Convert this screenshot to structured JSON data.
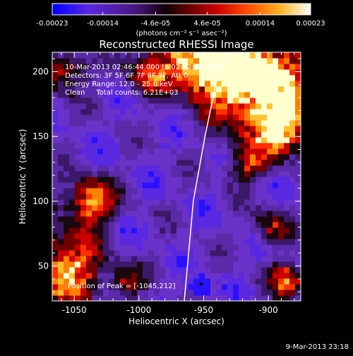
{
  "chart_data": {
    "type": "heatmap",
    "title": "Reconstructed RHESSI Image",
    "xlabel": "Heliocentric X (arcsec)",
    "ylabel": "Heliocentric Y (arcsec)",
    "xlim": [
      -1067,
      -875
    ],
    "ylim": [
      23,
      215
    ],
    "x_ticks": [
      "-1050",
      "-1000",
      "-950",
      "-900"
    ],
    "x_tick_values": [
      -1050,
      -1000,
      -950,
      -900
    ],
    "y_ticks": [
      "50",
      "100",
      "150",
      "200"
    ],
    "y_tick_values": [
      50,
      100,
      150,
      200
    ],
    "colorbar": {
      "ticks": [
        "-0.00023",
        "-0.00014",
        "-4.6e-05",
        "4.6e-05",
        "0.00014",
        "0.00023"
      ],
      "tick_values": [
        -0.00023,
        -0.00014,
        -4.6e-05,
        4.6e-05,
        0.00014,
        0.00023
      ],
      "range": [
        -0.00023,
        0.00023
      ],
      "unit_label": "(photons cm⁻² s⁻¹ asec⁻²)",
      "colormap": [
        "#0000ff",
        "#6a2ccf",
        "#5a1a8a",
        "#200000",
        "#b00000",
        "#ff3000",
        "#ff8000",
        "#ffd040",
        "#ffffff"
      ]
    },
    "annotations": [
      "10-Mar-2013 02:46:44.000 to 02:52:02.000",
      "Detectors: 3F 5F 6F 7F 8F 9F, Att 0",
      "Energy Range: 12.0 - 25.0 keV",
      "Clean     Total counts: 6.21E+03"
    ],
    "peak_label": "Position of Peak = [-1045,212]",
    "peak": [
      -1045,
      212
    ],
    "limb": [
      [
        -965,
        23
      ],
      [
        -958,
        100
      ],
      [
        -949,
        150
      ],
      [
        -940,
        193
      ],
      [
        -932,
        215
      ]
    ]
  },
  "footer_date": "9-Mar-2013 23:18"
}
